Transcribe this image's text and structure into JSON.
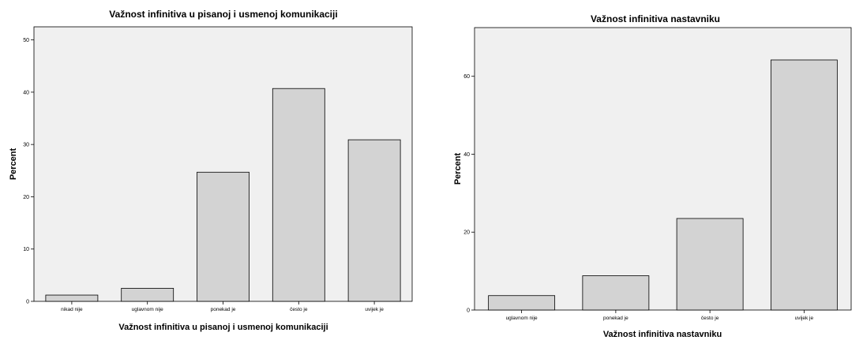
{
  "chart_data": [
    {
      "type": "bar",
      "title": "Važnost infinitiva u pisanoj i usmenoj komunikaciji",
      "xlabel": "Važnost infinitiva u pisanoj i usmenoj komunikaciji",
      "ylabel": "Percent",
      "categories": [
        "nikad nije",
        "uglavnom nije",
        "ponekad je",
        "često je",
        "uvijek je"
      ],
      "values": [
        1.2,
        2.5,
        24.7,
        40.7,
        30.9
      ],
      "ylim": [
        0,
        52.5
      ],
      "yticks": [
        0,
        10,
        20,
        30,
        40,
        50
      ],
      "grid": false,
      "colors": {
        "bar": "#d3d3d3",
        "plot_bg": "#f0f0f0",
        "border": "#000000"
      }
    },
    {
      "type": "bar",
      "title": "Važnost infinitiva nastavniku",
      "xlabel": "Važnost infinitiva nastavniku",
      "ylabel": "Percent",
      "categories": [
        "uglavnom nije",
        "ponekad je",
        "često je",
        "uvijek je"
      ],
      "values": [
        3.7,
        8.8,
        23.5,
        64.2
      ],
      "ylim": [
        0,
        72.5
      ],
      "yticks": [
        0,
        20,
        40,
        60
      ],
      "grid": false,
      "colors": {
        "bar": "#d3d3d3",
        "plot_bg": "#f0f0f0",
        "border": "#000000"
      }
    }
  ]
}
